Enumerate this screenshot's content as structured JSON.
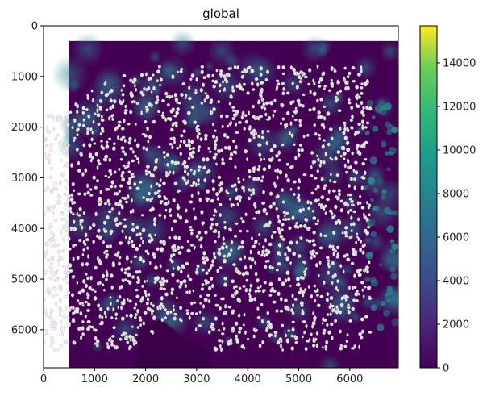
{
  "figure": {
    "title": "global",
    "image_description_colors": {
      "background": "#440154",
      "mid": "#3b528b",
      "teal": "#21918c",
      "green": "#5ec962",
      "yellow": "#fde725",
      "cell_outline": "#e6e6e6"
    }
  },
  "chart_data": {
    "type": "heatmap",
    "title": "global",
    "xlabel": "",
    "ylabel": "",
    "xlim": [
      0,
      6950
    ],
    "ylim": [
      6750,
      0
    ],
    "x_ticks": [
      0,
      1000,
      2000,
      3000,
      4000,
      5000,
      6000
    ],
    "y_ticks": [
      0,
      1000,
      2000,
      3000,
      4000,
      5000,
      6000
    ],
    "x_tick_labels": [
      "0",
      "1000",
      "2000",
      "3000",
      "4000",
      "5000",
      "6000"
    ],
    "y_tick_labels": [
      "0",
      "1000",
      "2000",
      "3000",
      "4000",
      "5000",
      "6000"
    ],
    "colorbar": {
      "range": [
        0,
        15700
      ],
      "ticks": [
        0,
        2000,
        4000,
        6000,
        8000,
        10000,
        12000,
        14000
      ],
      "tick_labels": [
        "0",
        "2000",
        "4000",
        "6000",
        "8000",
        "10000",
        "12000",
        "14000"
      ],
      "colormap": "viridis"
    },
    "image_extent": {
      "x": [
        500,
        6950
      ],
      "y": [
        300,
        6750
      ]
    },
    "segmented_region": {
      "x": [
        0,
        6400
      ],
      "y": [
        800,
        6400
      ]
    },
    "grid": false
  }
}
